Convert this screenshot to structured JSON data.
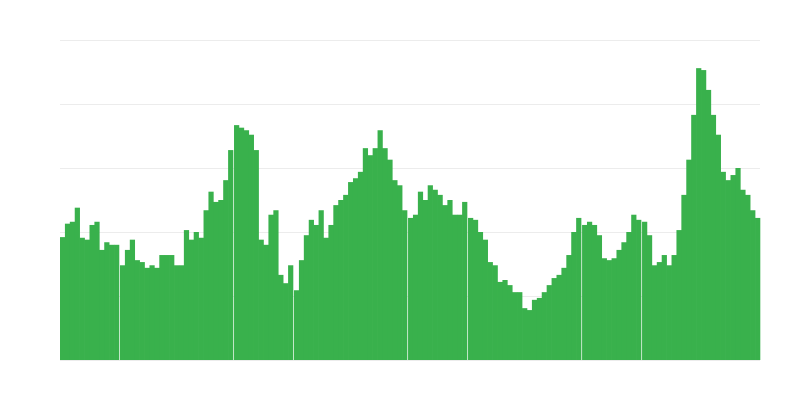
{
  "chart_data": {
    "type": "bar",
    "title": "",
    "xlabel": "",
    "ylabel": "",
    "ylim": [
      0,
      5
    ],
    "y_gridlines": [
      0,
      1,
      2,
      3,
      4,
      5
    ],
    "grid": true,
    "legend": "none",
    "bar_color": "#39b14c",
    "grid_color": "#ececec",
    "values": [
      1.92,
      2.13,
      2.16,
      2.38,
      1.91,
      1.88,
      2.11,
      2.16,
      1.72,
      1.84,
      1.8,
      1.8,
      null,
      1.48,
      1.72,
      1.88,
      1.56,
      1.53,
      1.44,
      1.48,
      1.44,
      1.64,
      1.64,
      1.64,
      1.48,
      1.48,
      2.03,
      1.88,
      2.0,
      1.91,
      2.34,
      2.63,
      2.47,
      2.5,
      2.81,
      3.28,
      null,
      3.67,
      3.63,
      3.59,
      3.52,
      3.28,
      1.88,
      1.8,
      2.27,
      2.34,
      1.33,
      1.2,
      1.48,
      null,
      1.09,
      1.56,
      1.95,
      2.19,
      2.11,
      2.34,
      1.91,
      2.11,
      2.42,
      2.5,
      2.58,
      2.78,
      2.84,
      2.94,
      3.31,
      3.2,
      3.31,
      3.59,
      3.31,
      3.13,
      2.81,
      2.73,
      2.34,
      null,
      2.22,
      2.27,
      2.63,
      2.5,
      2.73,
      2.66,
      2.58,
      2.42,
      2.5,
      2.27,
      2.27,
      2.47,
      null,
      2.22,
      2.19,
      2.0,
      1.88,
      1.53,
      1.48,
      1.22,
      1.25,
      1.17,
      1.06,
      1.06,
      0.81,
      0.78,
      0.94,
      0.97,
      1.06,
      1.17,
      1.28,
      1.33,
      1.44,
      1.64,
      2.0,
      2.22,
      null,
      2.11,
      2.16,
      2.11,
      1.95,
      1.59,
      1.56,
      1.59,
      1.72,
      1.84,
      2.0,
      2.27,
      2.19,
      null,
      2.16,
      1.95,
      1.48,
      1.53,
      1.64,
      1.48,
      1.64,
      2.03,
      2.58,
      3.13,
      3.83,
      4.56,
      4.53,
      4.22,
      3.83,
      3.52,
      2.94,
      2.81,
      2.89,
      3.0,
      2.66,
      2.58,
      2.34,
      2.22
    ]
  }
}
